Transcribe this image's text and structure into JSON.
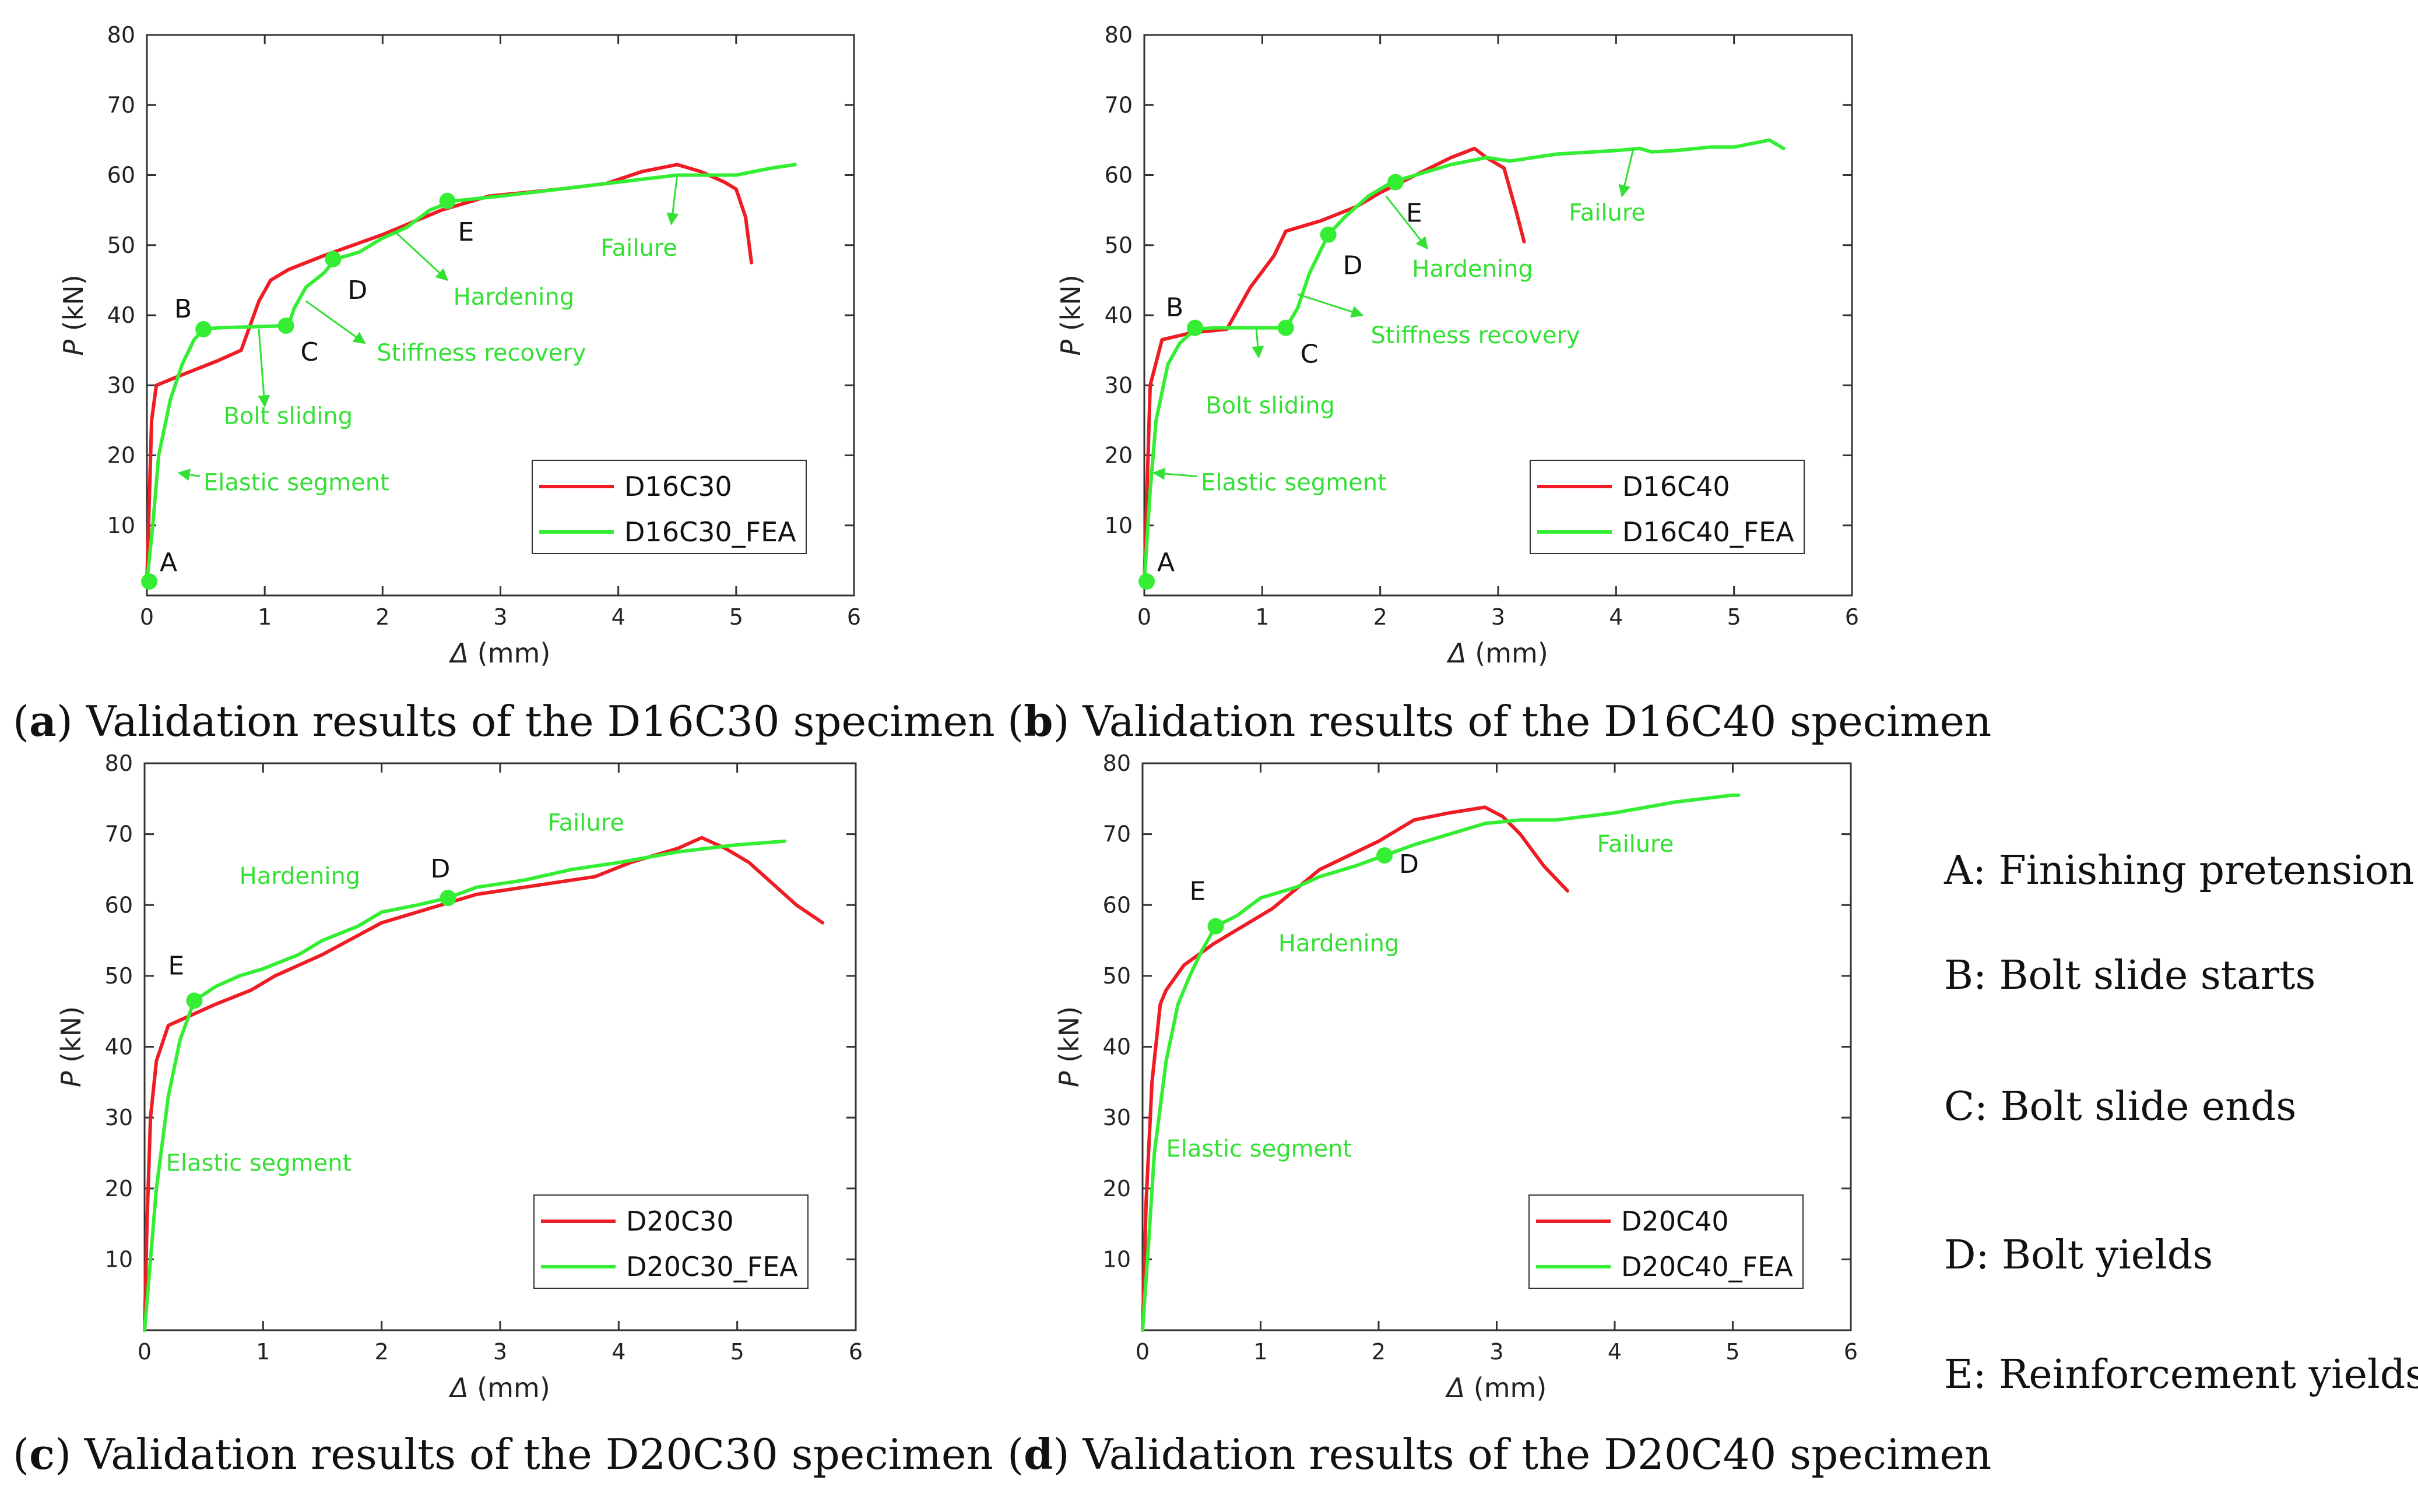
{
  "chart_data": [
    {
      "type": "line",
      "panel": "a",
      "caption_letter": "a",
      "caption_text": "Validation results of the D16C30 specimen",
      "xlabel_sym": "Δ",
      "xlabel_unit": " (mm)",
      "ylabel_sym": "P",
      "ylabel_unit": " (kN)",
      "xlim": [
        0,
        6
      ],
      "ylim": [
        0,
        80
      ],
      "xticks": [
        0,
        1,
        2,
        3,
        4,
        5,
        6
      ],
      "yticks": [
        10,
        20,
        30,
        40,
        50,
        60,
        70,
        80
      ],
      "series": [
        {
          "name": "D16C30",
          "color": "#ee1c24",
          "x": [
            0,
            0.04,
            0.08,
            0.3,
            0.6,
            0.8,
            0.95,
            1.05,
            1.2,
            1.5,
            2.0,
            2.5,
            2.9,
            3.5,
            3.9,
            4.2,
            4.5,
            4.7,
            4.9,
            5.0,
            5.08,
            5.13
          ],
          "y": [
            2,
            25,
            30,
            31.5,
            33.5,
            35,
            42,
            45,
            46.5,
            48.5,
            51.5,
            55,
            57,
            58,
            58.8,
            60.5,
            61.5,
            60.5,
            59,
            58,
            54,
            47.5
          ]
        },
        {
          "name": "D16C30_FEA",
          "color": "#33ee33",
          "x": [
            0,
            0.05,
            0.1,
            0.2,
            0.3,
            0.4,
            0.48,
            0.6,
            1.2,
            1.25,
            1.35,
            1.5,
            1.6,
            1.8,
            2.0,
            2.2,
            2.4,
            2.6,
            3.0,
            3.5,
            4.0,
            4.5,
            5.0,
            5.3,
            5.5
          ],
          "y": [
            2,
            10,
            20,
            28,
            33,
            36.5,
            38,
            38.2,
            38.5,
            41,
            44,
            46,
            48,
            49,
            51,
            52.5,
            55,
            56.3,
            57,
            58,
            59,
            60,
            60,
            61,
            61.5
          ]
        }
      ],
      "points": [
        {
          "label": "A",
          "x": 0.02,
          "y": 2
        },
        {
          "label": "B",
          "x": 0.48,
          "y": 38
        },
        {
          "label": "C",
          "x": 1.18,
          "y": 38.5
        },
        {
          "label": "D",
          "x": 1.58,
          "y": 48
        },
        {
          "label": "E",
          "x": 2.55,
          "y": 56.3
        }
      ],
      "annotations": [
        {
          "text": "Elastic segment",
          "tx": 0.48,
          "ty": 15,
          "ax": 0.45,
          "ay": 17,
          "hx": 0.27,
          "hy": 17.5,
          "arrow": true
        },
        {
          "text": "Bolt sliding",
          "tx": 0.65,
          "ty": 24.5,
          "ax": 0.95,
          "ay": 38,
          "hx": 1.0,
          "hy": 27,
          "arrow": true
        },
        {
          "text": "Stiffness recovery",
          "tx": 1.95,
          "ty": 33.5,
          "ax": 1.35,
          "ay": 42,
          "hx": 1.85,
          "hy": 36,
          "arrow": true
        },
        {
          "text": "Hardening",
          "tx": 2.6,
          "ty": 41.5,
          "ax": 2.1,
          "ay": 52,
          "hx": 2.55,
          "hy": 45,
          "arrow": true
        },
        {
          "text": "Failure",
          "tx": 3.85,
          "ty": 48.5,
          "ax": 4.5,
          "ay": 60,
          "hx": 4.45,
          "hy": 53,
          "arrow": true
        }
      ],
      "legend": [
        "D16C30",
        "D16C30_FEA"
      ],
      "legend_position": "bottom-right"
    },
    {
      "type": "line",
      "panel": "b",
      "caption_letter": "b",
      "caption_text": "Validation results of the D16C40 specimen",
      "xlabel_sym": "Δ",
      "xlabel_unit": " (mm)",
      "ylabel_sym": "P",
      "ylabel_unit": " (kN)",
      "xlim": [
        0,
        6
      ],
      "ylim": [
        0,
        80
      ],
      "xticks": [
        0,
        1,
        2,
        3,
        4,
        5,
        6
      ],
      "yticks": [
        10,
        20,
        30,
        40,
        50,
        60,
        70,
        80
      ],
      "series": [
        {
          "name": "D16C40",
          "color": "#ee1c24",
          "x": [
            0,
            0.05,
            0.15,
            0.4,
            0.7,
            0.9,
            1.1,
            1.2,
            1.5,
            1.8,
            2.0,
            2.3,
            2.6,
            2.8,
            2.9,
            3.05,
            3.15,
            3.22
          ],
          "y": [
            2,
            30,
            36.5,
            37.5,
            38,
            44,
            48.5,
            52,
            53.5,
            55.5,
            57.5,
            60,
            62.5,
            63.8,
            62.5,
            61,
            55,
            50.5
          ]
        },
        {
          "name": "D16C40_FEA",
          "color": "#33ee33",
          "x": [
            0,
            0.05,
            0.1,
            0.2,
            0.3,
            0.43,
            0.6,
            1.2,
            1.3,
            1.4,
            1.56,
            1.7,
            1.9,
            2.1,
            2.3,
            2.6,
            2.9,
            3.1,
            3.5,
            4.0,
            4.2,
            4.3,
            4.5,
            4.8,
            5.0,
            5.3,
            5.42
          ],
          "y": [
            2,
            15,
            25,
            33,
            36,
            38,
            38.2,
            38.2,
            41,
            46,
            51.5,
            54,
            57,
            59,
            60,
            61.5,
            62.5,
            62,
            63,
            63.5,
            63.8,
            63.3,
            63.5,
            64,
            64,
            65,
            63.8
          ]
        }
      ],
      "points": [
        {
          "label": "A",
          "x": 0.02,
          "y": 2
        },
        {
          "label": "B",
          "x": 0.43,
          "y": 38.2
        },
        {
          "label": "C",
          "x": 1.2,
          "y": 38.2
        },
        {
          "label": "D",
          "x": 1.56,
          "y": 51.5
        },
        {
          "label": "E",
          "x": 2.13,
          "y": 59
        }
      ],
      "annotations": [
        {
          "text": "Elastic segment",
          "tx": 0.48,
          "ty": 15,
          "ax": 0.45,
          "ay": 17,
          "hx": 0.08,
          "hy": 17.5,
          "arrow": true
        },
        {
          "text": "Bolt sliding",
          "tx": 0.52,
          "ty": 26,
          "ax": 0.95,
          "ay": 38,
          "hx": 0.97,
          "hy": 34,
          "arrow": true
        },
        {
          "text": "Stiffness recovery",
          "tx": 1.92,
          "ty": 36,
          "ax": 1.3,
          "ay": 43,
          "hx": 1.85,
          "hy": 40,
          "arrow": true
        },
        {
          "text": "Hardening",
          "tx": 2.27,
          "ty": 45.5,
          "ax": 2.05,
          "ay": 57,
          "hx": 2.4,
          "hy": 49.5,
          "arrow": true
        },
        {
          "text": "Failure",
          "tx": 3.6,
          "ty": 53.5,
          "ax": 4.15,
          "ay": 64,
          "hx": 4.05,
          "hy": 57,
          "arrow": true
        }
      ],
      "legend": [
        "D16C40",
        "D16C40_FEA"
      ],
      "legend_position": "bottom-right"
    },
    {
      "type": "line",
      "panel": "c",
      "caption_letter": "c",
      "caption_text": "Validation results of the D20C30 specimen",
      "xlabel_sym": "Δ",
      "xlabel_unit": " (mm)",
      "ylabel_sym": "P",
      "ylabel_unit": " (kN)",
      "xlim": [
        0,
        6
      ],
      "ylim": [
        0,
        80
      ],
      "xticks": [
        0,
        1,
        2,
        3,
        4,
        5,
        6
      ],
      "yticks": [
        10,
        20,
        30,
        40,
        50,
        60,
        70,
        80
      ],
      "series": [
        {
          "name": "D20C30",
          "color": "#ee1c24",
          "x": [
            0,
            0.02,
            0.05,
            0.1,
            0.2,
            0.4,
            0.6,
            0.9,
            1.1,
            1.5,
            2.0,
            2.5,
            2.8,
            3.2,
            3.8,
            4.1,
            4.5,
            4.7,
            4.9,
            5.1,
            5.3,
            5.5,
            5.72
          ],
          "y": [
            0,
            15,
            30,
            38,
            43,
            44.5,
            46,
            48,
            50,
            53,
            57.5,
            60,
            61.5,
            62.5,
            64,
            66,
            68,
            69.5,
            68,
            66,
            63,
            60,
            57.5
          ]
        },
        {
          "name": "D20C30_FEA",
          "color": "#33ee33",
          "x": [
            0,
            0.05,
            0.1,
            0.2,
            0.3,
            0.42,
            0.6,
            0.8,
            1.0,
            1.3,
            1.5,
            1.8,
            2.0,
            2.3,
            2.56,
            2.8,
            3.2,
            3.6,
            4.0,
            4.5,
            5.0,
            5.4
          ],
          "y": [
            0,
            10,
            20,
            33,
            41,
            46.5,
            48.5,
            50,
            51,
            53,
            55,
            57,
            59,
            60,
            61,
            62.5,
            63.5,
            65,
            66,
            67.5,
            68.5,
            69
          ]
        }
      ],
      "points": [
        {
          "label": "E",
          "x": 0.42,
          "y": 46.5
        },
        {
          "label": "D",
          "x": 2.56,
          "y": 61
        }
      ],
      "annotations": [
        {
          "text": "Elastic segment",
          "tx": 0.18,
          "ty": 22.5,
          "arrow": false
        },
        {
          "text": "Hardening",
          "tx": 0.8,
          "ty": 63,
          "arrow": false
        },
        {
          "text": "Failure",
          "tx": 3.4,
          "ty": 70.5,
          "arrow": false
        }
      ],
      "legend": [
        "D20C30",
        "D20C30_FEA"
      ],
      "legend_position": "bottom-right"
    },
    {
      "type": "line",
      "panel": "d",
      "caption_letter": "d",
      "caption_text": "Validation results of the D20C40 specimen",
      "xlabel_sym": "Δ",
      "xlabel_unit": " (mm)",
      "ylabel_sym": "P",
      "ylabel_unit": " (kN)",
      "xlim": [
        0,
        6
      ],
      "ylim": [
        0,
        80
      ],
      "xticks": [
        0,
        1,
        2,
        3,
        4,
        5,
        6
      ],
      "yticks": [
        10,
        20,
        30,
        40,
        50,
        60,
        70,
        80
      ],
      "series": [
        {
          "name": "D20C40",
          "color": "#ee1c24",
          "x": [
            0,
            0.03,
            0.08,
            0.15,
            0.2,
            0.35,
            0.6,
            0.8,
            1.1,
            1.5,
            2.0,
            2.3,
            2.6,
            2.9,
            3.05,
            3.2,
            3.4,
            3.6
          ],
          "y": [
            0,
            18,
            35,
            46,
            48,
            51.5,
            54.5,
            56.5,
            59.5,
            65,
            69,
            72,
            73,
            73.8,
            72.5,
            70,
            65.5,
            62
          ]
        },
        {
          "name": "D20C40_FEA",
          "color": "#33ee33",
          "x": [
            0,
            0.05,
            0.1,
            0.2,
            0.3,
            0.4,
            0.5,
            0.62,
            0.8,
            1.0,
            1.3,
            1.5,
            1.8,
            2.05,
            2.3,
            2.6,
            2.9,
            3.2,
            3.5,
            4.0,
            4.5,
            5.0,
            5.05
          ],
          "y": [
            0,
            12,
            25,
            38,
            46,
            50,
            53.5,
            57,
            58.5,
            61,
            62.5,
            64,
            65.5,
            67,
            68.5,
            70,
            71.5,
            72,
            72,
            73,
            74.5,
            75.5,
            75.5
          ]
        }
      ],
      "points": [
        {
          "label": "E",
          "x": 0.62,
          "y": 57
        },
        {
          "label": "D",
          "x": 2.05,
          "y": 67
        }
      ],
      "annotations": [
        {
          "text": "Elastic segment",
          "tx": 0.2,
          "ty": 24.5,
          "arrow": false
        },
        {
          "text": "Hardening",
          "tx": 1.15,
          "ty": 53.5,
          "arrow": false
        },
        {
          "text": "Failure",
          "tx": 3.85,
          "ty": 67.5,
          "arrow": false
        }
      ],
      "legend": [
        "D20C40",
        "D20C40_FEA"
      ],
      "legend_position": "bottom-right"
    }
  ],
  "key": [
    "A: Finishing pretension",
    "B: Bolt slide starts",
    "C: Bolt slide ends",
    "D: Bolt yields",
    "E: Reinforcement yields"
  ]
}
